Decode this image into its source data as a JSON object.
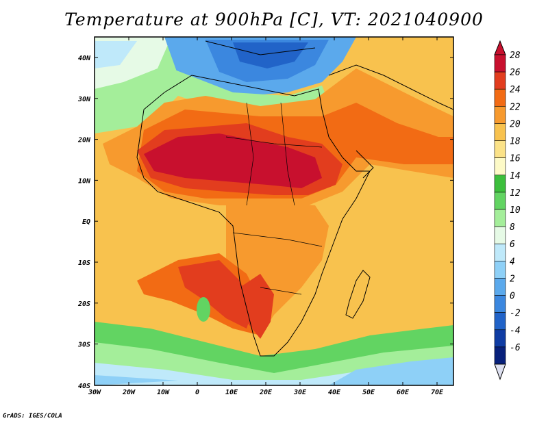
{
  "title": "Temperature at 900hPa [C], VT: 2021040900",
  "credit": "GrADS: IGES/COLA",
  "map": {
    "lat_labels": [
      "40N",
      "30N",
      "20N",
      "10N",
      "EQ",
      "10S",
      "20S",
      "30S",
      "40S"
    ],
    "lon_labels": [
      "30W",
      "20W",
      "10W",
      "0",
      "10E",
      "20E",
      "30E",
      "40E",
      "50E",
      "60E",
      "70E"
    ]
  },
  "colorbar": {
    "levels": [
      "28",
      "26",
      "24",
      "22",
      "20",
      "18",
      "16",
      "14",
      "12",
      "10",
      "8",
      "6",
      "4",
      "2",
      "0",
      "-2",
      "-4",
      "-6"
    ],
    "colors": [
      "#c8102e",
      "#e23d1e",
      "#f26b14",
      "#f79a2e",
      "#f8c24e",
      "#fbe288",
      "#fdfac7",
      "#3cbf3c",
      "#62d462",
      "#a4ee9a",
      "#e6fae6",
      "#bfe9fa",
      "#8ed0f7",
      "#5ba9ec",
      "#3b87df",
      "#2163c8",
      "#0f3ca3",
      "#07207b"
    ]
  },
  "colors": {
    "ocean_warm": "#f8c24e",
    "ocean_cool": "#a4ee9a",
    "hot_core": "#c8102e",
    "cold_med": "#3b87df"
  }
}
